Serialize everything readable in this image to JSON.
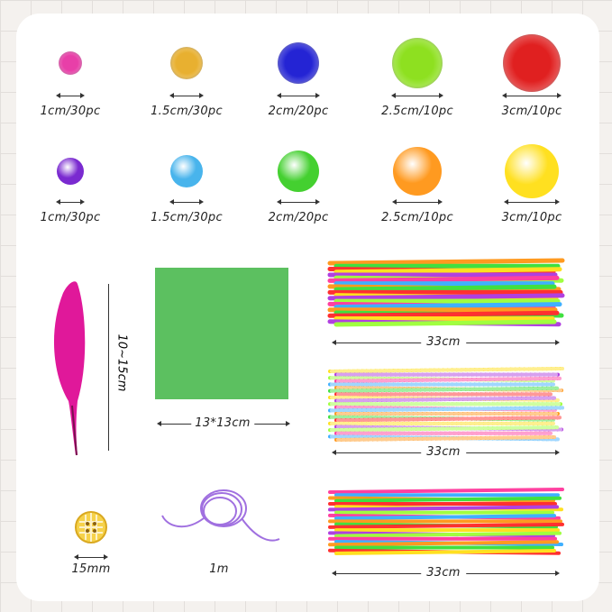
{
  "row1": [
    {
      "label": "1cm/30pc",
      "color": "#e83fa8"
    },
    {
      "label": "1.5cm/30pc",
      "color": "#e8b030"
    },
    {
      "label": "2cm/20pc",
      "color": "#2424d4"
    },
    {
      "label": "2.5cm/10pc",
      "color": "#8ee020"
    },
    {
      "label": "3cm/10pc",
      "color": "#e02020"
    }
  ],
  "row2": [
    {
      "label": "1cm/30pc",
      "color": "#7a2ad0"
    },
    {
      "label": "1.5cm/30pc",
      "color": "#48b4ec"
    },
    {
      "label": "2cm/20pc",
      "color": "#44d030"
    },
    {
      "label": "2.5cm/10pc",
      "color": "#ff9a20"
    },
    {
      "label": "3cm/10pc",
      "color": "#ffe020"
    }
  ],
  "feather": {
    "label": "10~15cm",
    "color": "#e0189a"
  },
  "felt": {
    "label": "13*13cm",
    "color": "#5cc060"
  },
  "pipe_cleaners": [
    {
      "label": "33cm"
    },
    {
      "label": "33cm"
    },
    {
      "label": "33cm"
    }
  ],
  "button": {
    "label": "15mm"
  },
  "cord": {
    "label": "1m",
    "color": "#a070e0"
  }
}
